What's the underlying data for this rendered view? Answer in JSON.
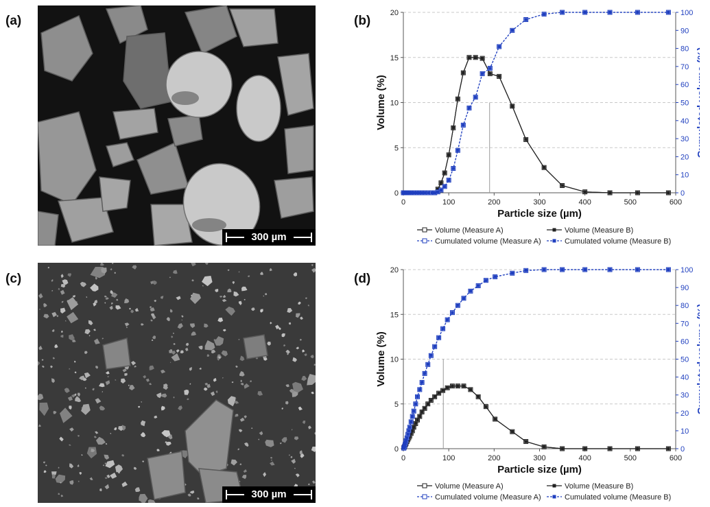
{
  "panels": {
    "a": {
      "label": "(a)",
      "scale_bar": "300 µm"
    },
    "b": {
      "label": "(b)"
    },
    "c": {
      "label": "(c)",
      "scale_bar": "300 µm"
    },
    "d": {
      "label": "(d)"
    }
  },
  "colors": {
    "volume": "#222222",
    "cumulated": "#1f3fbf",
    "grid": "#c8c8c8",
    "right_axis": "#1f3fbf"
  },
  "chart_data": [
    {
      "panel": "b",
      "type": "line",
      "xlabel": "Particle size (µm)",
      "ylabel": "Volume (%)",
      "y2label": "Cumulated volume (%)",
      "xlim": [
        0,
        600
      ],
      "ylim": [
        0,
        20
      ],
      "y2lim": [
        0,
        100
      ],
      "xticks": [
        0,
        100,
        200,
        300,
        400,
        500,
        600
      ],
      "yticks": [
        0,
        5,
        10,
        15,
        20
      ],
      "y2ticks": [
        0,
        10,
        20,
        30,
        40,
        50,
        60,
        70,
        80,
        90,
        100
      ],
      "grid": true,
      "marker_x": 190,
      "legend": [
        "Volume (Measure A)",
        "Volume (Measure B)",
        "Cumulated volume (Measure A)",
        "Cumulated volume (Measure B)"
      ],
      "x": [
        0,
        2,
        4,
        6,
        8,
        10,
        13,
        16,
        20,
        25,
        31,
        36,
        42,
        48,
        55,
        63,
        69,
        76,
        83,
        91,
        100,
        110,
        120,
        132,
        145,
        159,
        174,
        191,
        211,
        240,
        270,
        310,
        350,
        400,
        455,
        516,
        584
      ],
      "series": [
        {
          "name": "Volume (Measure A)",
          "axis": "left",
          "values": [
            0,
            0,
            0,
            0,
            0,
            0,
            0,
            0,
            0,
            0,
            0,
            0,
            0,
            0,
            0,
            0,
            0,
            0.4,
            1.1,
            2.2,
            4.2,
            7.2,
            10.4,
            13.3,
            15.0,
            15.0,
            14.9,
            13.2,
            12.9,
            9.6,
            5.9,
            2.8,
            0.8,
            0.1,
            0,
            0,
            0
          ]
        },
        {
          "name": "Volume (Measure B)",
          "axis": "left",
          "values": [
            0,
            0,
            0,
            0,
            0,
            0,
            0,
            0,
            0,
            0,
            0,
            0,
            0,
            0,
            0,
            0,
            0,
            0.4,
            1.1,
            2.2,
            4.2,
            7.2,
            10.4,
            13.3,
            15.0,
            15.0,
            14.9,
            13.2,
            12.9,
            9.6,
            5.9,
            2.8,
            0.8,
            0.1,
            0,
            0,
            0
          ]
        },
        {
          "name": "Cumulated volume (Measure A)",
          "axis": "right",
          "values": [
            0,
            0,
            0,
            0,
            0,
            0,
            0,
            0,
            0,
            0,
            0,
            0,
            0,
            0,
            0,
            0,
            0,
            0.5,
            1.5,
            3.5,
            7,
            13.5,
            23.5,
            37.5,
            47,
            53,
            66,
            69,
            81,
            90,
            96,
            99,
            100,
            100,
            100,
            100,
            100
          ]
        },
        {
          "name": "Cumulated volume (Measure B)",
          "axis": "right",
          "values": [
            0,
            0,
            0,
            0,
            0,
            0,
            0,
            0,
            0,
            0,
            0,
            0,
            0,
            0,
            0,
            0,
            0,
            0.5,
            1.5,
            3.5,
            7,
            13.5,
            23.5,
            37.5,
            47,
            53,
            66,
            69,
            81,
            90,
            96,
            99,
            100,
            100,
            100,
            100,
            100
          ]
        }
      ]
    },
    {
      "panel": "d",
      "type": "line",
      "xlabel": "Particle size (µm)",
      "ylabel": "Volume (%)",
      "y2label": "Cumulated volume (%)",
      "xlim": [
        0,
        600
      ],
      "ylim": [
        0,
        20
      ],
      "y2lim": [
        0,
        100
      ],
      "xticks": [
        0,
        100,
        200,
        300,
        400,
        500,
        600
      ],
      "yticks": [
        0,
        5,
        10,
        15,
        20
      ],
      "y2ticks": [
        0,
        10,
        20,
        30,
        40,
        50,
        60,
        70,
        80,
        90,
        100
      ],
      "grid": true,
      "marker_x": 88,
      "legend": [
        "Volume (Measure A)",
        "Volume (Measure B)",
        "Cumulated volume (Measure A)",
        "Cumulated volume (Measure B)"
      ],
      "x": [
        1,
        2,
        3,
        4,
        5,
        6,
        8,
        10,
        12,
        14,
        17,
        20,
        23,
        27,
        31,
        36,
        41,
        47,
        54,
        61,
        69,
        78,
        87,
        97,
        108,
        120,
        133,
        148,
        165,
        182,
        202,
        240,
        270,
        310,
        350,
        400,
        455,
        516,
        584
      ],
      "series": [
        {
          "name": "Volume (Measure A)",
          "axis": "left",
          "values": [
            0.1,
            0.2,
            0.3,
            0.4,
            0.5,
            0.6,
            0.8,
            1.0,
            1.2,
            1.4,
            1.7,
            2.0,
            2.4,
            2.8,
            3.2,
            3.6,
            4.1,
            4.5,
            5.0,
            5.4,
            5.8,
            6.2,
            6.5,
            6.8,
            7.0,
            7.0,
            7.0,
            6.6,
            5.8,
            4.7,
            3.3,
            1.9,
            0.8,
            0.2,
            0,
            0,
            0,
            0,
            0
          ]
        },
        {
          "name": "Volume (Measure B)",
          "axis": "left",
          "values": [
            0.1,
            0.2,
            0.3,
            0.4,
            0.5,
            0.6,
            0.8,
            1.0,
            1.2,
            1.4,
            1.7,
            2.0,
            2.4,
            2.8,
            3.2,
            3.6,
            4.1,
            4.5,
            5.0,
            5.4,
            5.8,
            6.2,
            6.5,
            6.8,
            7.0,
            7.0,
            7.0,
            6.6,
            5.8,
            4.7,
            3.3,
            1.9,
            0.8,
            0.2,
            0,
            0,
            0,
            0,
            0
          ]
        },
        {
          "name": "Cumulated volume (Measure A)",
          "axis": "right",
          "values": [
            0.3,
            0.8,
            1.5,
            2.5,
            3.5,
            4.5,
            6,
            8,
            10,
            12,
            15,
            18,
            21,
            25,
            29,
            33,
            37,
            42,
            47,
            52,
            57,
            62,
            67,
            72,
            76,
            80,
            84,
            88,
            91,
            94,
            96,
            98,
            99.5,
            100,
            100,
            100,
            100,
            100,
            100
          ]
        },
        {
          "name": "Cumulated volume (Measure B)",
          "axis": "right",
          "values": [
            0.3,
            0.8,
            1.5,
            2.5,
            3.5,
            4.5,
            6,
            8,
            10,
            12,
            15,
            18,
            21,
            25,
            29,
            33,
            37,
            42,
            47,
            52,
            57,
            62,
            67,
            72,
            76,
            80,
            84,
            88,
            91,
            94,
            96,
            98,
            99.5,
            100,
            100,
            100,
            100,
            100,
            100
          ]
        }
      ]
    }
  ]
}
